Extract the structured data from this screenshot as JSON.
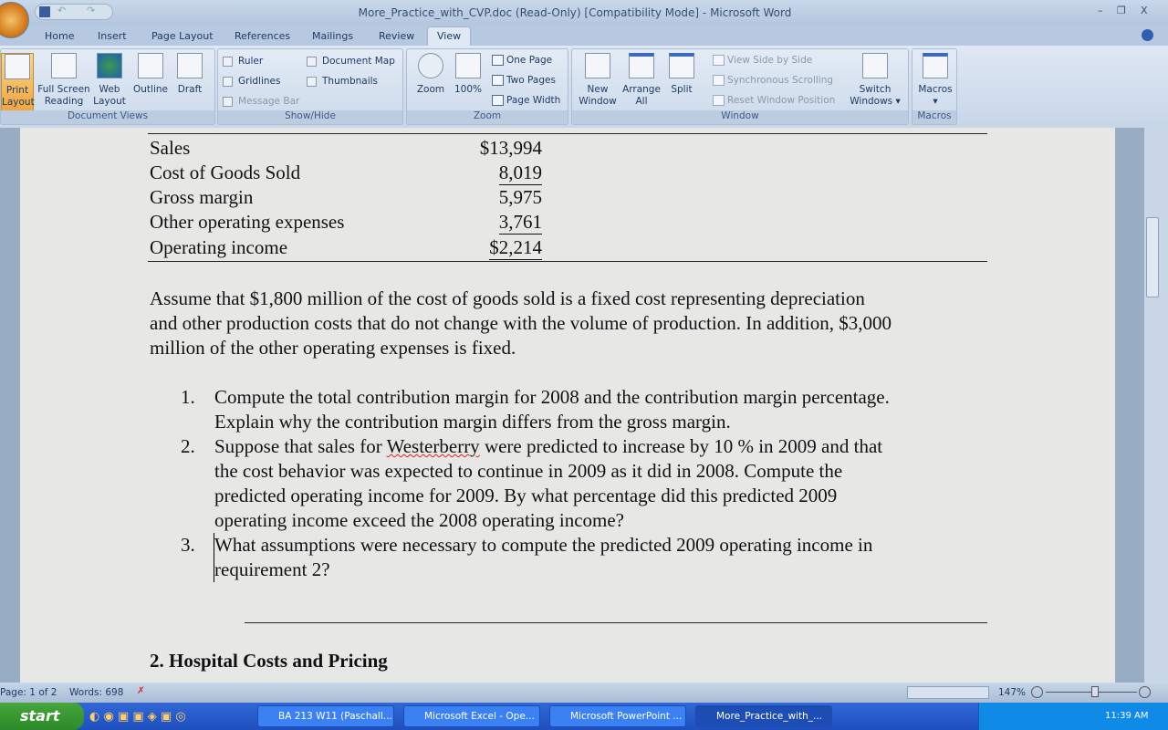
{
  "window": {
    "title": "More_Practice_with_CVP.doc (Read-Only) [Compatibility Mode] - Microsoft Word",
    "min": "–",
    "restore": "❐",
    "close": "X"
  },
  "ribbon_tabs": [
    "Home",
    "Insert",
    "Page Layout",
    "References",
    "Mailings",
    "Review",
    "View"
  ],
  "active_tab": "View",
  "groups": {
    "document_views": {
      "label": "Document Views",
      "buttons": [
        "Print\nLayout",
        "Full Screen\nReading",
        "Web\nLayout",
        "Outline",
        "Draft"
      ]
    },
    "show_hide": {
      "label": "Show/Hide",
      "checks": [
        "Ruler",
        "Gridlines",
        "Message Bar",
        "Document Map",
        "Thumbnails"
      ]
    },
    "zoom": {
      "label": "Zoom",
      "buttons": [
        "Zoom",
        "100%"
      ],
      "small": [
        "One Page",
        "Two Pages",
        "Page Width"
      ]
    },
    "window": {
      "label": "Window",
      "buttons": [
        "New\nWindow",
        "Arrange\nAll",
        "Split",
        "Switch\nWindows ▾"
      ],
      "small": [
        "View Side by Side",
        "Synchronous Scrolling",
        "Reset Window Position"
      ]
    },
    "macros": {
      "label": "Macros",
      "buttons": [
        "Macros\n▾"
      ]
    }
  },
  "document": {
    "table": [
      {
        "label": "Sales",
        "value": "$13,994",
        "style": ""
      },
      {
        "label": "Cost of Goods Sold",
        "value": "8,019",
        "style": "u"
      },
      {
        "label": "Gross margin",
        "value": "5,975",
        "style": ""
      },
      {
        "label": "Other operating expenses",
        "value": "3,761",
        "style": "u"
      },
      {
        "label": "Operating income",
        "value": "$2,214",
        "style": "uu"
      }
    ],
    "paragraph": [
      "Assume that $1,800 million of the cost of goods sold is a fixed cost representing depreciation",
      "and other production costs that do not change with the volume of production. In addition, $3,000",
      "million of the other operating expenses is fixed."
    ],
    "questions": [
      {
        "num": "1.",
        "lines": [
          "Compute the total contribution margin for 2008 and the contribution margin percentage.",
          "Explain why the contribution margin differs from the gross margin."
        ]
      },
      {
        "num": "2.",
        "pre": "Suppose that sales for ",
        "misspelled": "Westerberry",
        "post": " were predicted to increase by 10 % in 2009 and that",
        "lines": [
          "the cost behavior was expected to continue in 2009 as it did in 2008. Compute the",
          "predicted operating income for 2009. By what percentage did this predicted 2009",
          "operating income exceed the 2008 operating income?"
        ]
      },
      {
        "num": "3.",
        "lines": [
          "What assumptions were necessary to compute the predicted 2009 operating income in",
          "requirement 2?"
        ]
      }
    ],
    "heading": "2.  Hospital Costs and Pricing"
  },
  "status": {
    "page": "Page: 1 of 2",
    "words": "Words: 698",
    "zoom": "147%"
  },
  "taskbar": {
    "start": "start",
    "tasks": [
      "BA 213 W11 (Paschall...",
      "Microsoft Excel - Ope...",
      "Microsoft PowerPoint ...",
      "More_Practice_with_..."
    ],
    "active_task": 3,
    "clock": "11:39 AM"
  }
}
